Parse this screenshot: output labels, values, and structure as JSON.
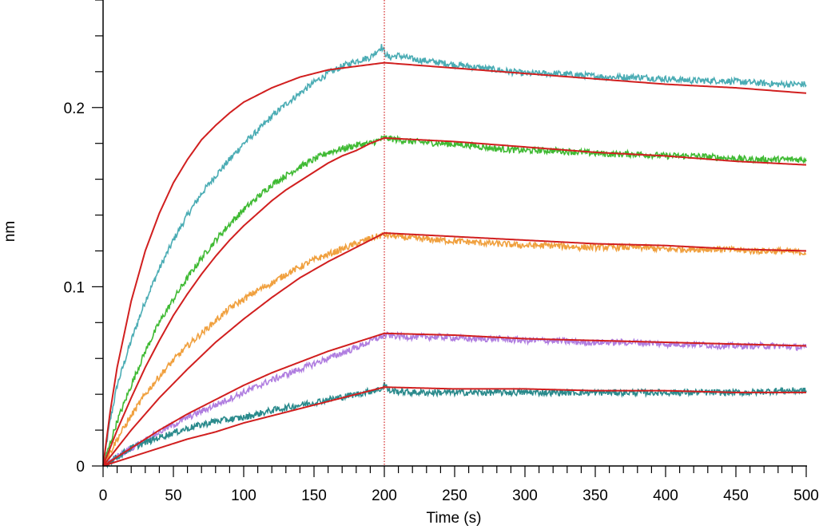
{
  "chart_data": {
    "type": "line",
    "title": "",
    "xlabel": "Time (s)",
    "ylabel": "nm",
    "xlim": [
      0,
      500
    ],
    "ylim": [
      0,
      0.26
    ],
    "x_ticks": [
      0,
      50,
      100,
      150,
      200,
      250,
      300,
      350,
      400,
      450,
      500
    ],
    "x_tick_labels": [
      "0",
      "50",
      "100",
      "150",
      "200",
      "250",
      "300",
      "350",
      "400",
      "450",
      "500"
    ],
    "y_ticks": [
      0,
      0.1,
      0.2
    ],
    "y_tick_labels": [
      "0",
      "0.1",
      "0.2"
    ],
    "grid": false,
    "legend": "none",
    "marker_line": {
      "x": 200,
      "style": "dotted",
      "color": "#d11f1f"
    },
    "fit_color": "#d11f1f",
    "series": [
      {
        "color": "#4aacb4",
        "x": [
          0,
          5,
          10,
          20,
          30,
          40,
          50,
          60,
          70,
          80,
          90,
          100,
          110,
          120,
          130,
          140,
          150,
          160,
          170,
          180,
          190,
          198,
          200,
          203,
          210,
          220,
          240,
          260,
          280,
          300,
          320,
          340,
          360,
          380,
          400,
          420,
          440,
          460,
          480,
          500
        ],
        "y": [
          0.0,
          0.025,
          0.045,
          0.07,
          0.092,
          0.11,
          0.126,
          0.14,
          0.152,
          0.162,
          0.171,
          0.18,
          0.187,
          0.195,
          0.202,
          0.208,
          0.214,
          0.219,
          0.223,
          0.226,
          0.228,
          0.234,
          0.231,
          0.228,
          0.229,
          0.227,
          0.225,
          0.223,
          0.221,
          0.219,
          0.219,
          0.218,
          0.217,
          0.217,
          0.216,
          0.215,
          0.215,
          0.214,
          0.213,
          0.213
        ]
      },
      {
        "color": "#3fba33",
        "x": [
          0,
          10,
          20,
          30,
          40,
          50,
          60,
          70,
          80,
          90,
          100,
          110,
          120,
          130,
          140,
          150,
          160,
          170,
          180,
          190,
          200,
          210,
          220,
          240,
          260,
          280,
          300,
          320,
          340,
          360,
          380,
          400,
          420,
          440,
          460,
          480,
          500
        ],
        "y": [
          0.0,
          0.025,
          0.045,
          0.064,
          0.08,
          0.093,
          0.105,
          0.116,
          0.126,
          0.135,
          0.143,
          0.15,
          0.157,
          0.162,
          0.167,
          0.171,
          0.175,
          0.177,
          0.179,
          0.18,
          0.183,
          0.182,
          0.181,
          0.18,
          0.179,
          0.177,
          0.176,
          0.176,
          0.175,
          0.174,
          0.174,
          0.173,
          0.173,
          0.172,
          0.171,
          0.171,
          0.171
        ]
      },
      {
        "color": "#f0a03e",
        "x": [
          0,
          10,
          20,
          30,
          40,
          50,
          60,
          70,
          80,
          90,
          100,
          110,
          120,
          130,
          140,
          150,
          160,
          170,
          180,
          190,
          200,
          220,
          240,
          260,
          280,
          300,
          320,
          340,
          360,
          380,
          400,
          420,
          440,
          460,
          480,
          500
        ],
        "y": [
          0.0,
          0.015,
          0.028,
          0.04,
          0.05,
          0.059,
          0.067,
          0.074,
          0.081,
          0.088,
          0.093,
          0.098,
          0.102,
          0.107,
          0.111,
          0.115,
          0.118,
          0.121,
          0.124,
          0.127,
          0.129,
          0.127,
          0.126,
          0.125,
          0.124,
          0.123,
          0.123,
          0.122,
          0.122,
          0.122,
          0.121,
          0.121,
          0.121,
          0.12,
          0.12,
          0.119
        ]
      },
      {
        "color": "#b07ee0",
        "x": [
          0,
          20,
          40,
          60,
          80,
          100,
          120,
          140,
          160,
          180,
          200,
          220,
          240,
          260,
          280,
          300,
          320,
          340,
          360,
          380,
          400,
          420,
          440,
          460,
          480,
          500
        ],
        "y": [
          0.0,
          0.01,
          0.019,
          0.027,
          0.034,
          0.041,
          0.048,
          0.054,
          0.06,
          0.066,
          0.073,
          0.072,
          0.072,
          0.071,
          0.071,
          0.07,
          0.07,
          0.069,
          0.069,
          0.069,
          0.068,
          0.068,
          0.067,
          0.067,
          0.067,
          0.066
        ]
      },
      {
        "color": "#2a8a8c",
        "x": [
          0,
          20,
          40,
          60,
          80,
          100,
          120,
          140,
          160,
          180,
          198,
          200,
          203,
          220,
          240,
          260,
          280,
          300,
          320,
          340,
          360,
          380,
          400,
          420,
          440,
          460,
          480,
          500
        ],
        "y": [
          0.0,
          0.01,
          0.016,
          0.021,
          0.025,
          0.027,
          0.031,
          0.034,
          0.037,
          0.04,
          0.043,
          0.046,
          0.042,
          0.041,
          0.041,
          0.041,
          0.041,
          0.041,
          0.041,
          0.041,
          0.041,
          0.041,
          0.041,
          0.041,
          0.041,
          0.041,
          0.042,
          0.042
        ]
      }
    ],
    "fits": [
      {
        "x": [
          0,
          5,
          10,
          20,
          30,
          40,
          50,
          60,
          70,
          80,
          90,
          100,
          110,
          120,
          130,
          140,
          150,
          160,
          170,
          180,
          190,
          200,
          250,
          300,
          350,
          400,
          450,
          500
        ],
        "y": [
          0.0,
          0.03,
          0.055,
          0.092,
          0.12,
          0.141,
          0.158,
          0.171,
          0.182,
          0.19,
          0.197,
          0.203,
          0.207,
          0.211,
          0.214,
          0.217,
          0.219,
          0.221,
          0.222,
          0.223,
          0.224,
          0.225,
          0.222,
          0.219,
          0.216,
          0.213,
          0.211,
          0.208
        ]
      },
      {
        "x": [
          0,
          10,
          20,
          30,
          40,
          50,
          60,
          70,
          80,
          90,
          100,
          110,
          120,
          130,
          140,
          150,
          160,
          170,
          180,
          190,
          200,
          250,
          300,
          350,
          400,
          450,
          500
        ],
        "y": [
          0.0,
          0.02,
          0.038,
          0.055,
          0.07,
          0.084,
          0.096,
          0.107,
          0.117,
          0.126,
          0.134,
          0.141,
          0.148,
          0.154,
          0.159,
          0.164,
          0.169,
          0.173,
          0.176,
          0.18,
          0.183,
          0.181,
          0.178,
          0.175,
          0.173,
          0.17,
          0.168
        ]
      },
      {
        "x": [
          0,
          20,
          40,
          60,
          80,
          100,
          120,
          140,
          160,
          180,
          200,
          250,
          300,
          350,
          400,
          450,
          500
        ],
        "y": [
          0.0,
          0.02,
          0.038,
          0.054,
          0.069,
          0.082,
          0.094,
          0.105,
          0.114,
          0.122,
          0.13,
          0.128,
          0.126,
          0.124,
          0.123,
          0.121,
          0.12
        ]
      },
      {
        "x": [
          0,
          20,
          40,
          60,
          80,
          100,
          120,
          140,
          160,
          180,
          200,
          250,
          300,
          350,
          400,
          450,
          500
        ],
        "y": [
          0.0,
          0.01,
          0.02,
          0.029,
          0.037,
          0.045,
          0.052,
          0.058,
          0.064,
          0.069,
          0.074,
          0.073,
          0.071,
          0.07,
          0.069,
          0.068,
          0.067
        ]
      },
      {
        "x": [
          0,
          20,
          40,
          60,
          80,
          100,
          120,
          140,
          160,
          180,
          200,
          250,
          300,
          350,
          400,
          450,
          500
        ],
        "y": [
          0.0,
          0.005,
          0.01,
          0.015,
          0.019,
          0.024,
          0.028,
          0.032,
          0.036,
          0.04,
          0.044,
          0.043,
          0.043,
          0.042,
          0.042,
          0.041,
          0.041
        ]
      }
    ]
  }
}
